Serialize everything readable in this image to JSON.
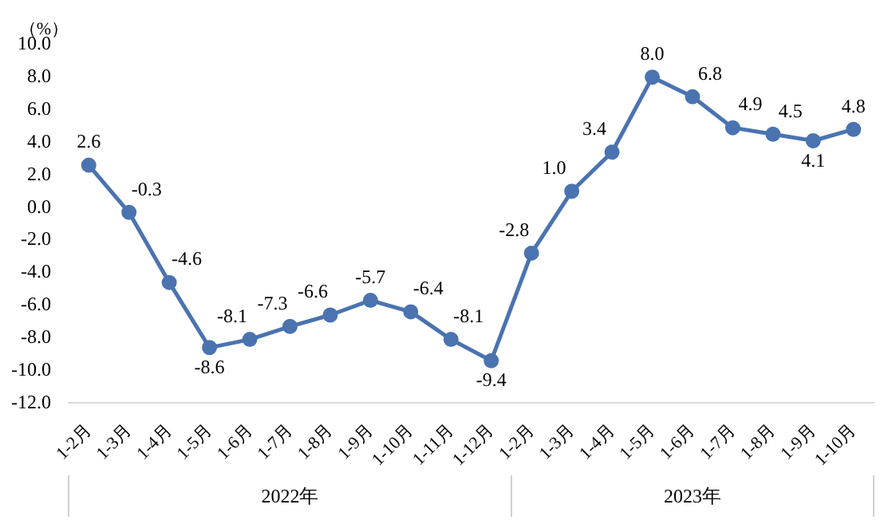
{
  "chart_data": {
    "type": "line",
    "ylabel": "（%）",
    "categories": [
      "1-2月",
      "1-3月",
      "1-4月",
      "1-5月",
      "1-6月",
      "1-7月",
      "1-8月",
      "1-9月",
      "1-10月",
      "1-11月",
      "1-12月",
      "1-2月",
      "1-3月",
      "1-4月",
      "1-5月",
      "1-6月",
      "1-7月",
      "1-8月",
      "1-9月",
      "1-10月"
    ],
    "series": [
      {
        "color": "#4a73b0",
        "values": [
          2.6,
          -0.3,
          -4.6,
          -8.6,
          -8.1,
          -7.3,
          -6.6,
          -5.7,
          -6.4,
          -8.1,
          -9.4,
          -2.8,
          1.0,
          3.4,
          8.0,
          6.8,
          4.9,
          4.5,
          4.1,
          4.8
        ],
        "value_labels": [
          "2.6",
          "-0.3",
          "-4.6",
          "-8.6",
          "-8.1",
          "-7.3",
          "-6.6",
          "-5.7",
          "-6.4",
          "-8.1",
          "-9.4",
          "-2.8",
          "1.0",
          "3.4",
          "8.0",
          "6.8",
          "4.9",
          "4.5",
          "4.1",
          "4.8"
        ]
      }
    ],
    "ylim": [
      -12,
      10
    ],
    "yticks": [
      {
        "value": -12,
        "label": "-12.0"
      },
      {
        "value": -10,
        "label": "-10.0"
      },
      {
        "value": -8,
        "label": "-8.0"
      },
      {
        "value": -6,
        "label": "-6.0"
      },
      {
        "value": -4,
        "label": "-4.0"
      },
      {
        "value": -2,
        "label": "-2.0"
      },
      {
        "value": 0,
        "label": "0.0"
      },
      {
        "value": 2,
        "label": "2.0"
      },
      {
        "value": 4,
        "label": "4.0"
      },
      {
        "value": 6,
        "label": "6.0"
      },
      {
        "value": 8,
        "label": "8.0"
      },
      {
        "value": 10,
        "label": "10.0"
      }
    ],
    "annotations": [
      "2022年",
      "2023年"
    ],
    "grid": false,
    "legend": false,
    "marker": "circle",
    "line_style": "solid"
  }
}
